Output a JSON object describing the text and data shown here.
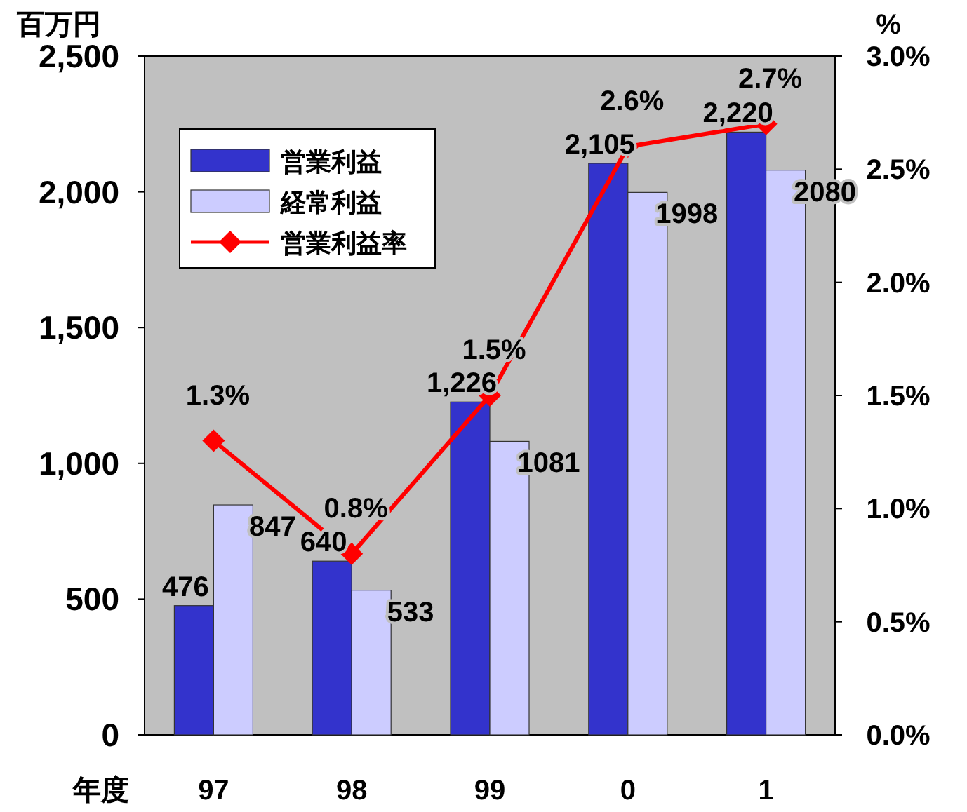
{
  "chart_data": {
    "type": "bar",
    "ylabel": "百万円",
    "y2label": "%",
    "xlabel": "年度",
    "categories": [
      "97",
      "98",
      "99",
      "0",
      "1"
    ],
    "series": [
      {
        "name": "営業利益",
        "color": "#3333cc",
        "values": [
          476,
          640,
          1226,
          2105,
          2220
        ],
        "value_labels": [
          "476",
          "640",
          "1,226",
          "2,105",
          "2,220"
        ]
      },
      {
        "name": "経常利益",
        "color": "#ccccff",
        "values": [
          847,
          533,
          1081,
          1998,
          2080
        ],
        "value_labels": [
          "847",
          "533",
          "1081",
          "1998",
          "2080"
        ]
      },
      {
        "name": "営業利益率",
        "type": "line",
        "axis": "y2",
        "color": "#ff0000",
        "marker": "diamond",
        "values": [
          1.3,
          0.8,
          1.5,
          2.6,
          2.7
        ],
        "value_labels": [
          "1.3%",
          "0.8%",
          "1.5%",
          "2.6%",
          "2.7%"
        ]
      }
    ],
    "ylim": [
      0,
      2500
    ],
    "yticks": [
      {
        "value": 0,
        "label": "0"
      },
      {
        "value": 500,
        "label": "500"
      },
      {
        "value": 1000,
        "label": "1,000"
      },
      {
        "value": 1500,
        "label": "1,500"
      },
      {
        "value": 2000,
        "label": "2,000"
      },
      {
        "value": 2500,
        "label": "2,500"
      }
    ],
    "y2lim": [
      0,
      3
    ],
    "y2ticks": [
      {
        "value": 0,
        "label": "0.0%"
      },
      {
        "value": 0.5,
        "label": "0.5%"
      },
      {
        "value": 1,
        "label": "1.0%"
      },
      {
        "value": 1.5,
        "label": "1.5%"
      },
      {
        "value": 2,
        "label": "2.0%"
      },
      {
        "value": 2.5,
        "label": "2.5%"
      },
      {
        "value": 3,
        "label": "3.0%"
      }
    ],
    "legend": "top left"
  }
}
